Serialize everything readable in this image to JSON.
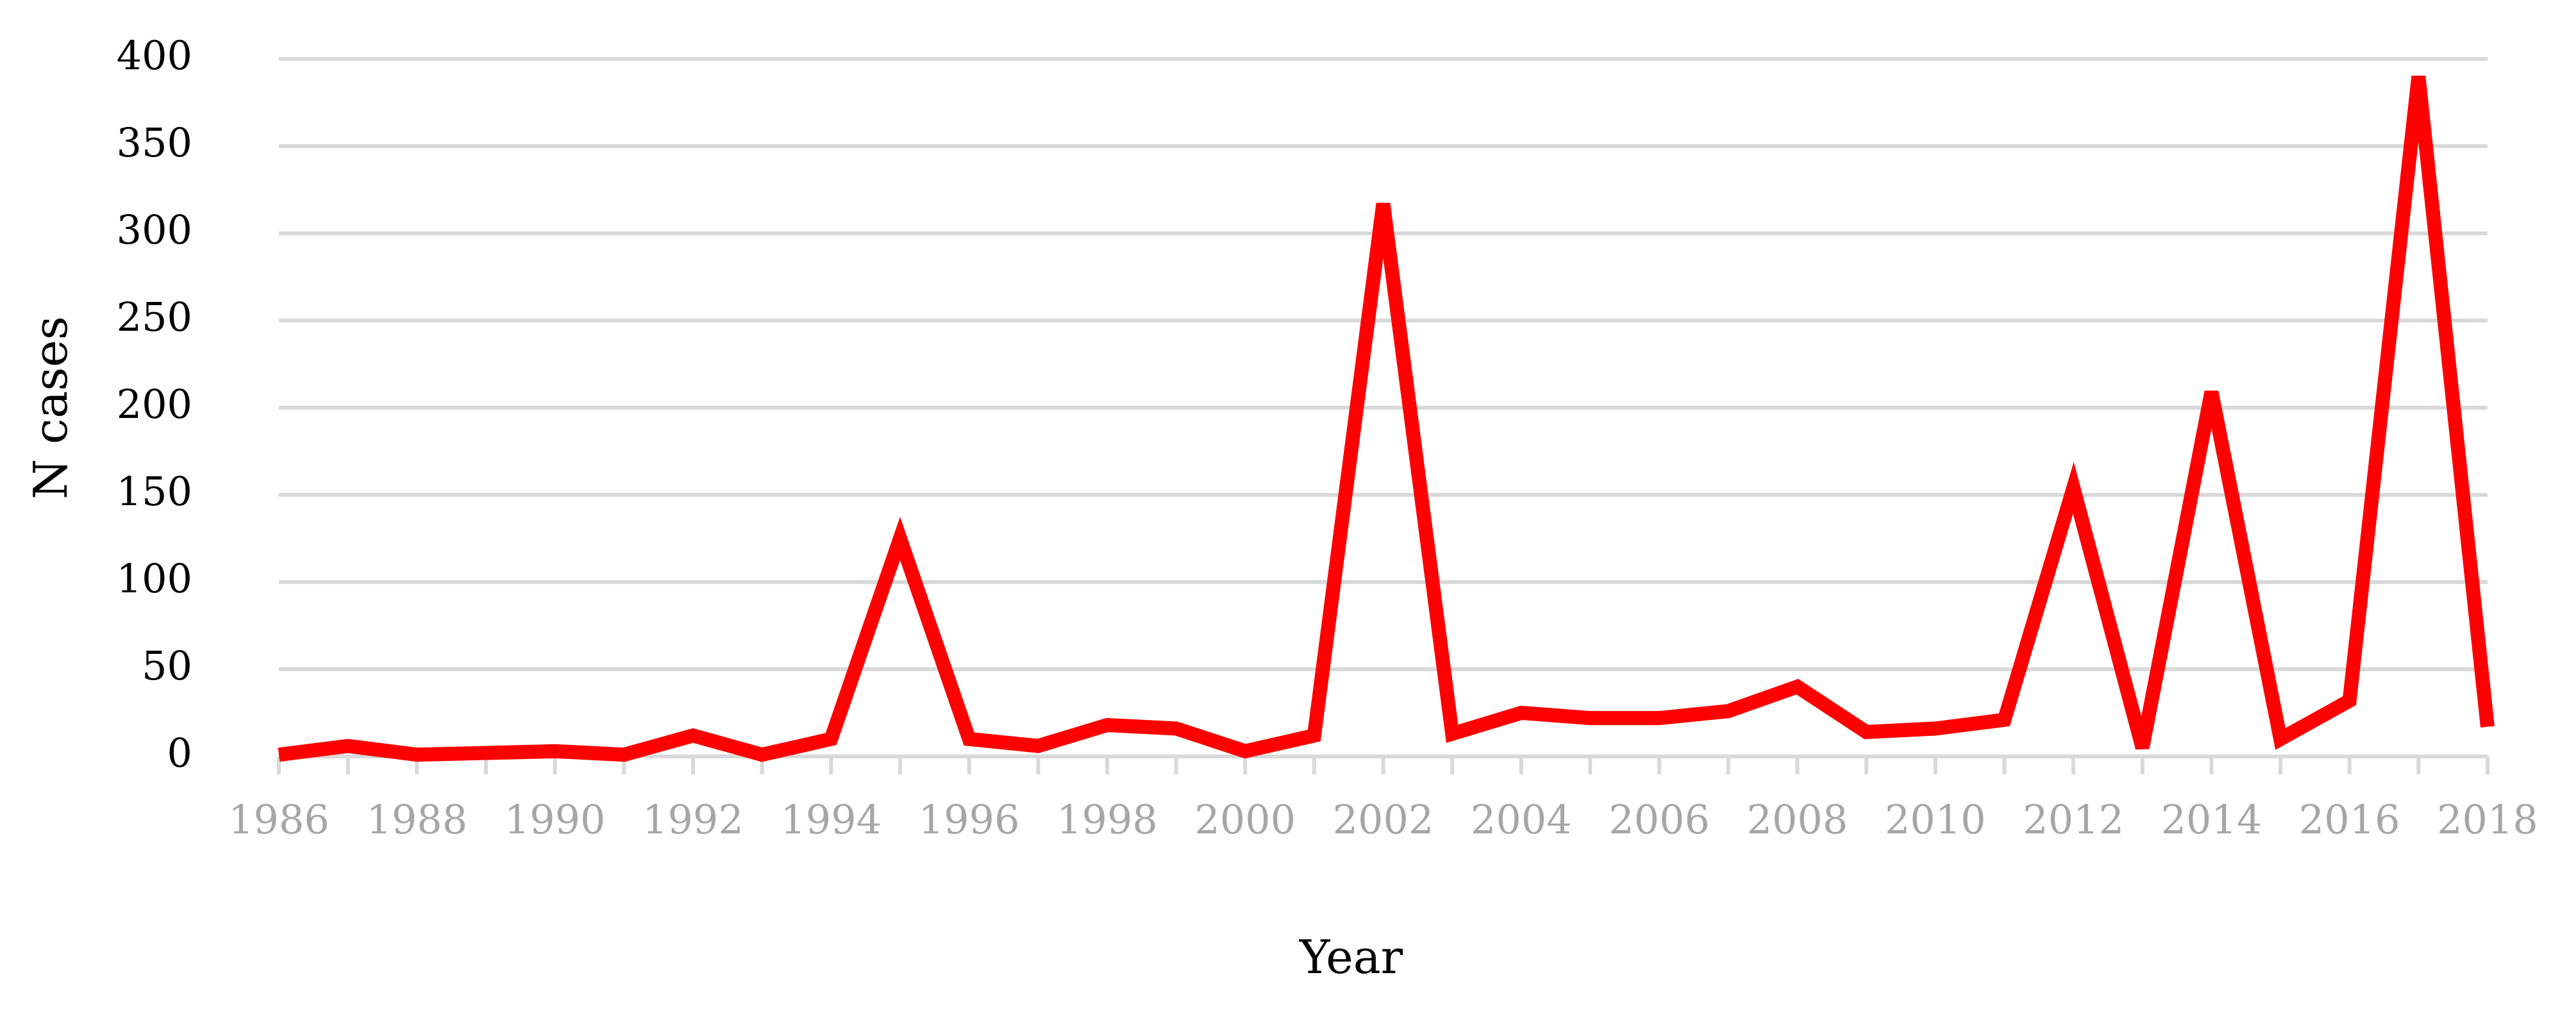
{
  "chart_data": {
    "type": "line",
    "title": "",
    "xlabel": "Year",
    "ylabel": "N cases",
    "x": [
      1986,
      1987,
      1988,
      1989,
      1990,
      1991,
      1992,
      1993,
      1994,
      1995,
      1996,
      1997,
      1998,
      1999,
      2000,
      2001,
      2002,
      2003,
      2004,
      2005,
      2006,
      2007,
      2008,
      2009,
      2010,
      2011,
      2012,
      2013,
      2014,
      2015,
      2016,
      2017,
      2018
    ],
    "x_tick_labels": [
      "1986",
      "1988",
      "1990",
      "1992",
      "1994",
      "1996",
      "1998",
      "2000",
      "2002",
      "2004",
      "2006",
      "2008",
      "2010",
      "2012",
      "2014",
      "2016",
      "2018"
    ],
    "y_tick_labels": [
      "0",
      "50",
      "100",
      "150",
      "200",
      "250",
      "300",
      "350",
      "400"
    ],
    "ylim": [
      0,
      400
    ],
    "xlim": [
      1986,
      2018
    ],
    "grid": true,
    "legend": "none",
    "series": [
      {
        "color": "#ff0000",
        "values": [
          1,
          6,
          1,
          2,
          3,
          1,
          12,
          1,
          10,
          125,
          10,
          6,
          18,
          16,
          3,
          12,
          317,
          13,
          25,
          22,
          22,
          26,
          40,
          14,
          16,
          21,
          154,
          5,
          209,
          10,
          32,
          390,
          17
        ]
      }
    ]
  }
}
